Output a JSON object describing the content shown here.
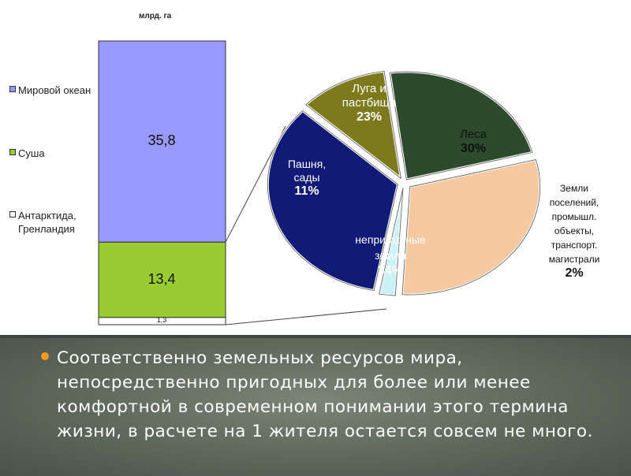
{
  "chart_data": [
    {
      "type": "bar",
      "subtype": "stacked",
      "unit": "млрд. га",
      "ylim": [
        0,
        50.5
      ],
      "segments": [
        {
          "name": "Мировой океан",
          "value": 35.8,
          "value_label": "35,8",
          "color": "#9999ff"
        },
        {
          "name": "Суша",
          "value": 13.4,
          "value_label": "13,4",
          "color": "#99cc33"
        },
        {
          "name": "Антарктида, Гренландия",
          "value": 1.3,
          "value_label": "1,3",
          "color": "#ffffff"
        }
      ],
      "legend": [
        {
          "label": "Мировой океан",
          "color": "#9999ff"
        },
        {
          "label": "Суша",
          "color": "#99cc33"
        },
        {
          "label": "Антарктида, Гренландия",
          "color": "#ffffff"
        }
      ],
      "legend_placement": "left"
    },
    {
      "type": "pie",
      "slices": [
        {
          "label": "Луга и пастбища",
          "value": 23,
          "pct_label": "23%",
          "color": "#2c4a2c",
          "text_color": "#ffffff"
        },
        {
          "label": "Леса",
          "value": 30,
          "pct_label": "30%",
          "color": "#f7c9a1",
          "text_color": "#111111"
        },
        {
          "label": "Земли поселений, промышл. объекты, транспорт. магистрали",
          "value": 2,
          "pct_label": "2%",
          "color": "#c9f3f7",
          "text_color": "#111111"
        },
        {
          "label": "непригод-ные земли",
          "value": 34,
          "pct_label": "34%",
          "color": "#121a78",
          "text_color": "#ffffff"
        },
        {
          "label": "Пашня, сады",
          "value": 11,
          "pct_label": "11%",
          "color": "#7d7a1e",
          "text_color": "#ffffff"
        }
      ]
    }
  ],
  "bar_labels": {
    "unit": "млрд. га",
    "ocean_value": "35,8",
    "land_value": "13,4",
    "ice_value": "1,3",
    "legend_ocean": "Мировой океан",
    "legend_land": "Суша",
    "legend_ice": "Антарктида, Гренландия"
  },
  "pie_labels": {
    "meadows": "Луга и пастбища",
    "meadows_pct": "23%",
    "forest": "Леса",
    "forest_pct": "30%",
    "arable": "Пашня, сады",
    "arable_pct": "11%",
    "unusable": "непригод-ные земли",
    "unusable_pct": "34%",
    "settlements": "Земли поселений, промышл. объекты, транспорт. магистрали",
    "settlements_pct": "2%"
  },
  "bullet_text": "Соответственно земельных ресурсов мира, непосредственно пригодных для более или менее комфортной в современном понимании этого термина жизни, в расчете на 1 жителя остается совсем не много.",
  "colors": {
    "bullet": "#f39a1f",
    "panel_bg": "#5d675a"
  }
}
